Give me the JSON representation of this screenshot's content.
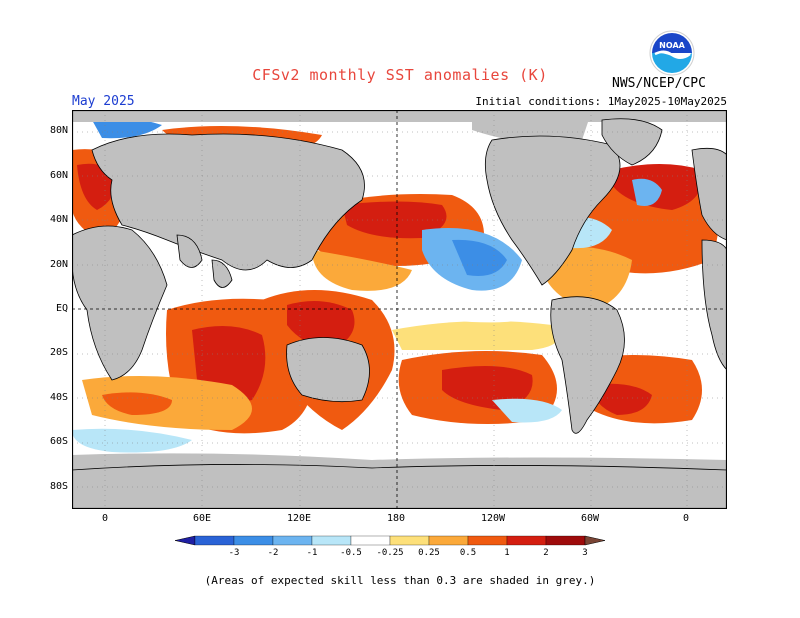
{
  "title": "CFSv2 monthly SST anomalies (K)",
  "month": "May 2025",
  "initial_conditions": "Initial conditions: 1May2025-10May2025",
  "agency": "NWS/NCEP/CPC",
  "logo_text": "NOAA",
  "note": "(Areas of expected skill less than 0.3 are shaded in grey.)",
  "lat_labels": [
    "80N",
    "60N",
    "40N",
    "20N",
    "EQ",
    "20S",
    "40S",
    "60S",
    "80S"
  ],
  "lon_labels": [
    "0",
    "60E",
    "120E",
    "180",
    "120W",
    "60W",
    "0"
  ],
  "colorbar": {
    "labels": [
      "-3",
      "-2",
      "-1",
      "-0.5",
      "-0.25",
      "0.25",
      "0.5",
      "1",
      "2",
      "3"
    ],
    "colors": [
      "#1f1fa3",
      "#2a63d6",
      "#3c8ee6",
      "#6cb4f0",
      "#b8e6f8",
      "#ffffff",
      "#fde07a",
      "#fba93a",
      "#f05a10",
      "#d41e10",
      "#9e0b0b",
      "#7a4535"
    ]
  },
  "colors": {
    "land": "#c0c0c0",
    "ocean_neutral": "#ffffff",
    "title": "#e8463c",
    "month": "#1c3dd1"
  }
}
